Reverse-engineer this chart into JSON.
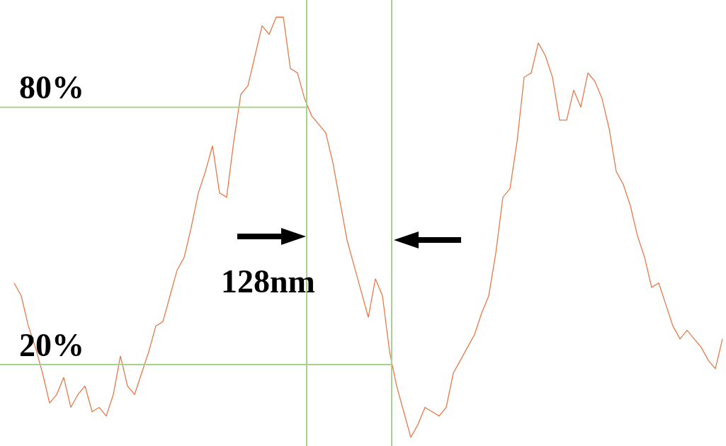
{
  "chart_data": {
    "type": "line",
    "categories": [
      null,
      null,
      null,
      null,
      null,
      null,
      null,
      null,
      null,
      null,
      null,
      null,
      null,
      null,
      null,
      null,
      null,
      null,
      null,
      null,
      null,
      null,
      null,
      null,
      null,
      null,
      null,
      null,
      null,
      null,
      null,
      null,
      null,
      null,
      null,
      null,
      null,
      null,
      null,
      null,
      null,
      null,
      null,
      null,
      null,
      null,
      null,
      null,
      null,
      null,
      null,
      null,
      null,
      null,
      null,
      null,
      null,
      null,
      null,
      null,
      null,
      null,
      null,
      null,
      null,
      null,
      null,
      null,
      null,
      null,
      null,
      null,
      null,
      null,
      null,
      null,
      null,
      null,
      null,
      null,
      null,
      null,
      null,
      null,
      null,
      null,
      null,
      null,
      null,
      null,
      null,
      null,
      null,
      null,
      null,
      null,
      null,
      null,
      null,
      null,
      null
    ],
    "series": [
      {
        "color": "#e8794a",
        "values": [
          39,
          36,
          29,
          24,
          18,
          11,
          13,
          17,
          10,
          13,
          15,
          9,
          10,
          8,
          13,
          22,
          15,
          13,
          18,
          23,
          29,
          30,
          36,
          42,
          45,
          52,
          60,
          65,
          71,
          60,
          59,
          72,
          83,
          85,
          92,
          99,
          97,
          101,
          101,
          89,
          88,
          82,
          78,
          76,
          74,
          67,
          58,
          49,
          43,
          37,
          31,
          40,
          36,
          23,
          15,
          9,
          3,
          6,
          10,
          9,
          8,
          10,
          18,
          21,
          24,
          27,
          32,
          36,
          46,
          59,
          61,
          72,
          87,
          88,
          95,
          92,
          87,
          77,
          77,
          84,
          80,
          88,
          86,
          82,
          75,
          65,
          62,
          57,
          50,
          45,
          38,
          39,
          34,
          29,
          26,
          28,
          26,
          24,
          21,
          19,
          26
        ]
      }
    ],
    "ylim": [
      1,
      105
    ],
    "grid": false,
    "marker": "none",
    "line_style": "solid",
    "ref_lines": [
      {
        "axis": "y",
        "value": 80,
        "label": "80%",
        "color": "#a9d18e"
      },
      {
        "axis": "y",
        "value": 20,
        "label": "20%",
        "color": "#a9d18e"
      }
    ],
    "annotations": [
      "128nm"
    ]
  }
}
